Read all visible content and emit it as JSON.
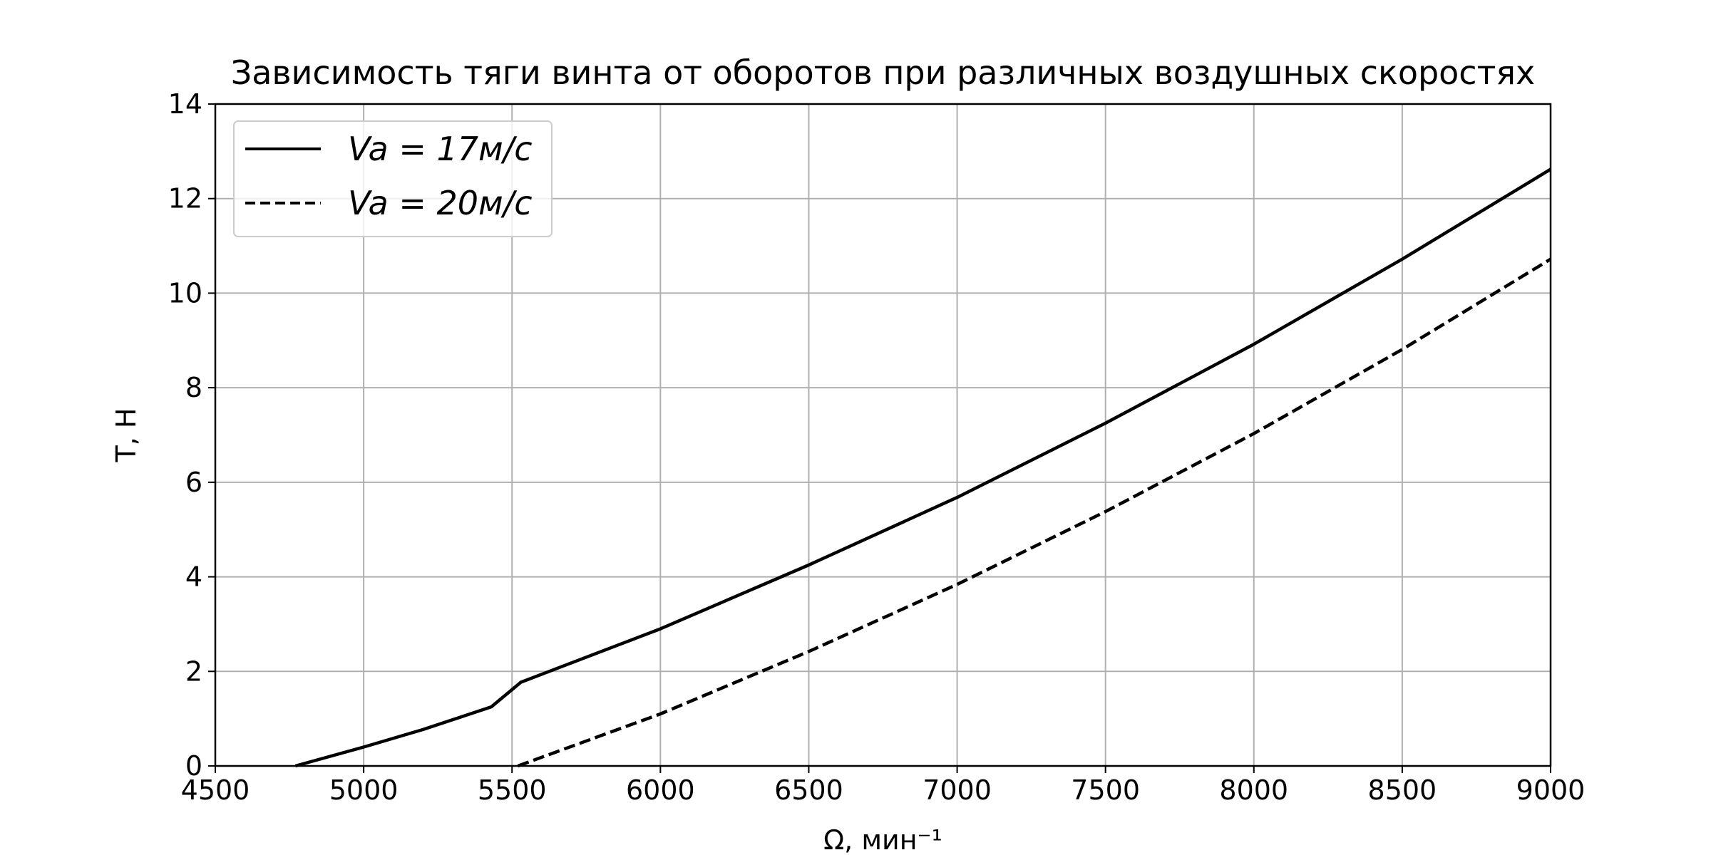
{
  "chart_data": {
    "type": "line",
    "title": "Зависимость тяги винта от оборотов при различных воздушных скоростях",
    "xlabel": "Ω, мин⁻¹",
    "ylabel": "T, Н",
    "xlim": [
      4500,
      9000
    ],
    "ylim": [
      0,
      14
    ],
    "xticks": [
      4500,
      5000,
      5500,
      6000,
      6500,
      7000,
      7500,
      8000,
      8500,
      9000
    ],
    "yticks": [
      0,
      2,
      4,
      6,
      8,
      10,
      12,
      14
    ],
    "grid": true,
    "legend_position": "top-left",
    "series": [
      {
        "name": "Va = 17м/с",
        "style": "solid",
        "color": "#000000",
        "x": [
          4770,
          5000,
          5200,
          5430,
          5530,
          6000,
          6500,
          7000,
          7500,
          8000,
          8500,
          9000
        ],
        "y": [
          0,
          0.4,
          0.77,
          1.25,
          1.77,
          2.9,
          4.25,
          5.68,
          7.25,
          8.92,
          10.72,
          12.62
        ]
      },
      {
        "name": "Va = 20м/с",
        "style": "dashed",
        "color": "#000000",
        "x": [
          5520,
          6000,
          6500,
          7000,
          7500,
          8000,
          8500,
          9000
        ],
        "y": [
          0,
          1.1,
          2.42,
          3.84,
          5.38,
          7.03,
          8.81,
          10.72
        ]
      }
    ]
  }
}
